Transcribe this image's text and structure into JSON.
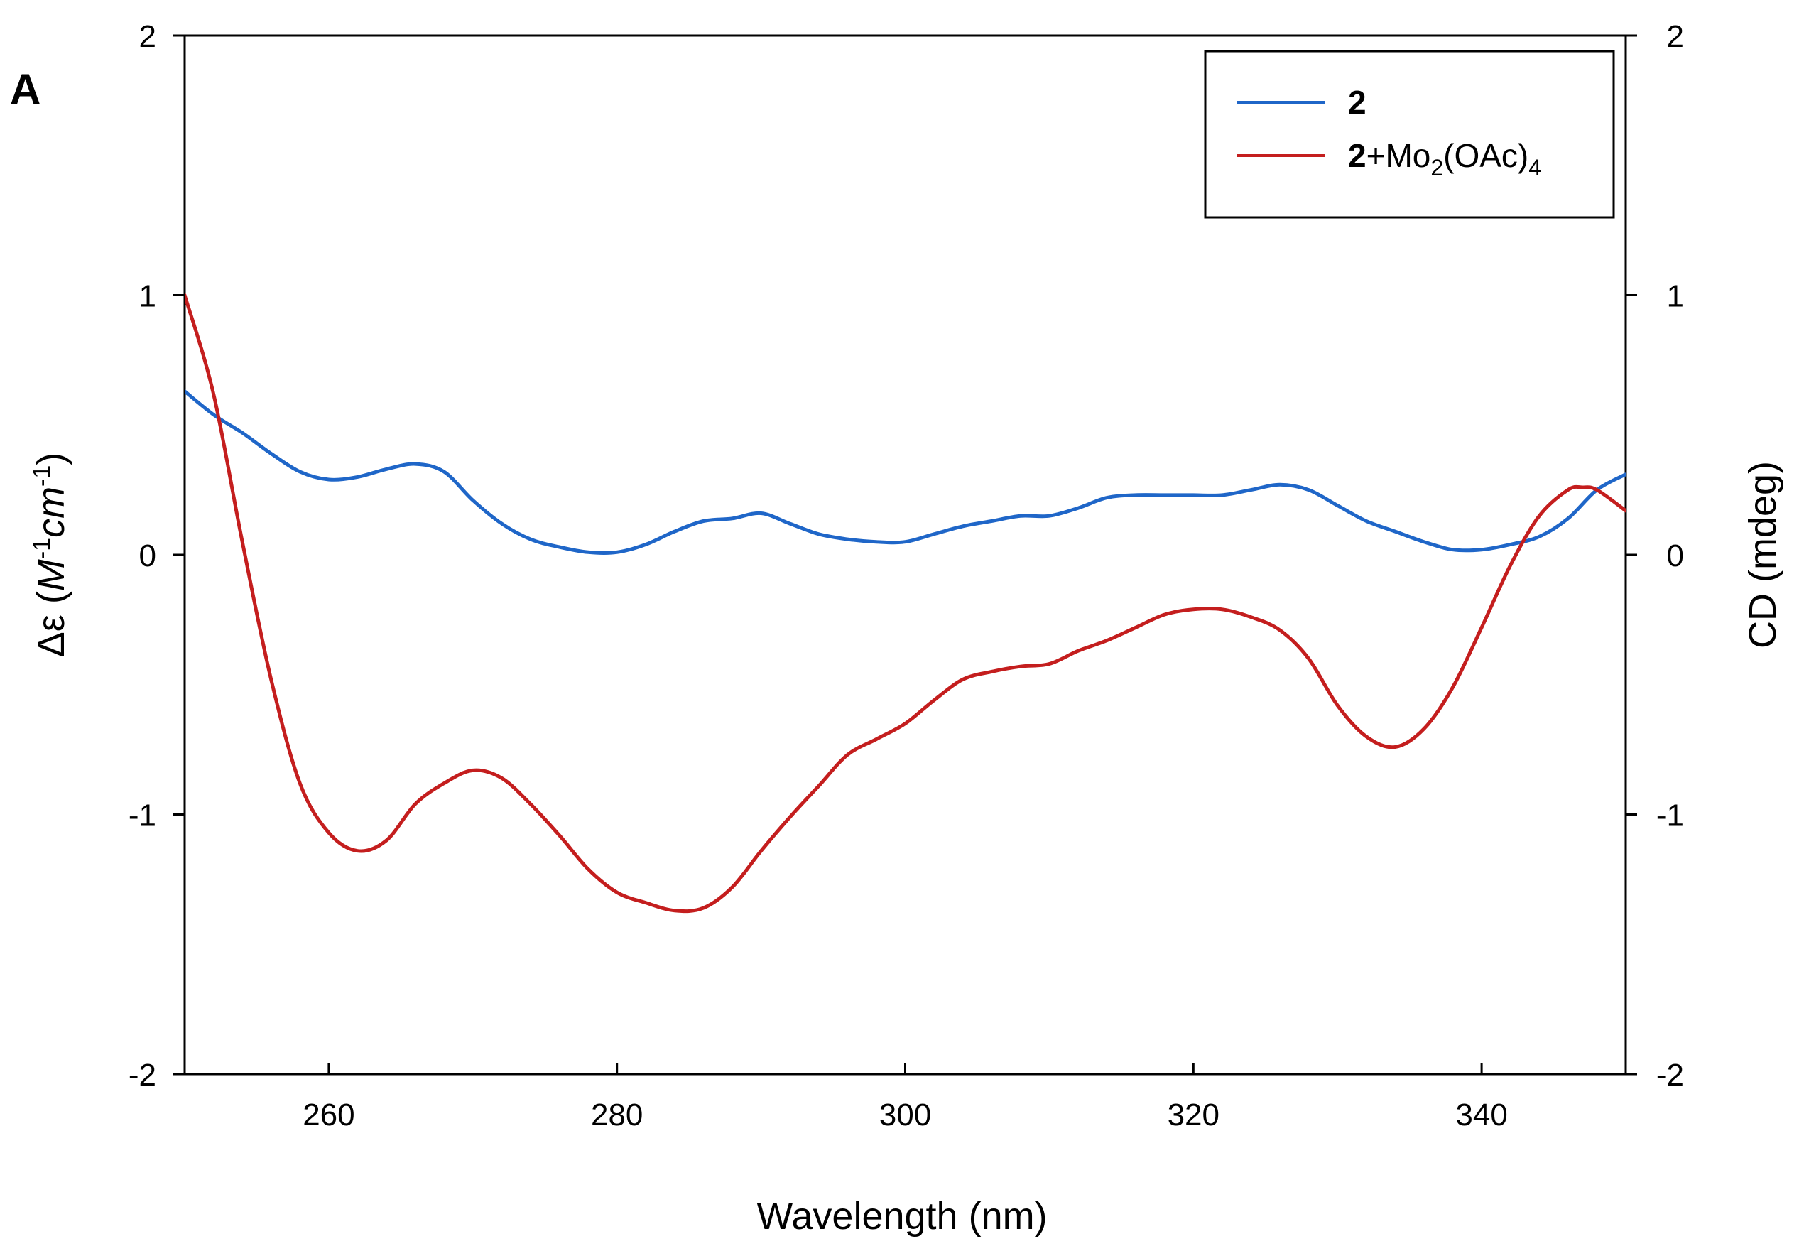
{
  "chart_data": {
    "type": "line",
    "panel_label": "A",
    "xlabel": "Wavelength (nm)",
    "ylabel_left": {
      "prefix": "Δε (",
      "M": "M",
      "sup1": "-1",
      "cm": "cm",
      "sup2": "-1",
      "suffix": ")"
    },
    "ylabel_right": "CD (mdeg)",
    "xlim": [
      250,
      350
    ],
    "ylim": [
      -2,
      2
    ],
    "xticks": [
      260,
      280,
      300,
      320,
      340
    ],
    "xtick_labels": [
      "260",
      "280",
      "300",
      "320",
      "340"
    ],
    "yticks": [
      -2,
      -1,
      0,
      1,
      2
    ],
    "ytick_labels": [
      "-2",
      "-1",
      "0",
      "1",
      "2"
    ],
    "legend": {
      "position": "top-right",
      "entries": [
        {
          "bold": "2",
          "rest": "",
          "sub1": "",
          "mid": "",
          "sub2": ""
        },
        {
          "bold": "2",
          "rest": "+Mo",
          "sub1": "2",
          "mid": "(OAc)",
          "sub2": "4"
        }
      ]
    },
    "series": [
      {
        "name": "2",
        "color": "#1f66c8",
        "x": [
          250,
          252,
          254,
          256,
          258,
          260,
          262,
          264,
          266,
          268,
          270,
          272,
          274,
          276,
          278,
          280,
          282,
          284,
          286,
          288,
          290,
          292,
          294,
          296,
          298,
          300,
          302,
          304,
          306,
          308,
          310,
          312,
          314,
          316,
          318,
          320,
          322,
          324,
          326,
          328,
          330,
          332,
          334,
          336,
          338,
          340,
          342,
          344,
          346,
          348,
          350
        ],
        "values": [
          0.63,
          0.54,
          0.47,
          0.39,
          0.32,
          0.29,
          0.3,
          0.33,
          0.35,
          0.32,
          0.21,
          0.12,
          0.06,
          0.03,
          0.01,
          0.01,
          0.04,
          0.09,
          0.13,
          0.14,
          0.16,
          0.12,
          0.08,
          0.06,
          0.05,
          0.05,
          0.08,
          0.11,
          0.13,
          0.15,
          0.15,
          0.18,
          0.22,
          0.23,
          0.23,
          0.23,
          0.23,
          0.25,
          0.27,
          0.25,
          0.19,
          0.13,
          0.09,
          0.05,
          0.02,
          0.02,
          0.04,
          0.07,
          0.14,
          0.25,
          0.31
        ]
      },
      {
        "name": "2+Mo2(OAc)4",
        "color": "#c41e1e",
        "x": [
          250,
          252,
          254,
          256,
          258,
          260,
          262,
          264,
          266,
          268,
          270,
          272,
          274,
          276,
          278,
          280,
          282,
          284,
          286,
          288,
          290,
          292,
          294,
          296,
          298,
          300,
          302,
          304,
          306,
          308,
          310,
          312,
          314,
          316,
          318,
          320,
          322,
          324,
          326,
          328,
          330,
          332,
          334,
          336,
          338,
          340,
          342,
          344,
          346,
          347,
          348,
          350
        ],
        "values": [
          1.0,
          0.62,
          0.05,
          -0.48,
          -0.88,
          -1.07,
          -1.14,
          -1.1,
          -0.96,
          -0.88,
          -0.83,
          -0.86,
          -0.96,
          -1.08,
          -1.21,
          -1.3,
          -1.34,
          -1.37,
          -1.36,
          -1.28,
          -1.14,
          -1.01,
          -0.89,
          -0.77,
          -0.71,
          -0.65,
          -0.56,
          -0.48,
          -0.45,
          -0.43,
          -0.42,
          -0.37,
          -0.33,
          -0.28,
          -0.23,
          -0.21,
          -0.21,
          -0.24,
          -0.29,
          -0.4,
          -0.58,
          -0.7,
          -0.74,
          -0.67,
          -0.51,
          -0.28,
          -0.04,
          0.15,
          0.25,
          0.26,
          0.25,
          0.17
        ]
      }
    ]
  }
}
